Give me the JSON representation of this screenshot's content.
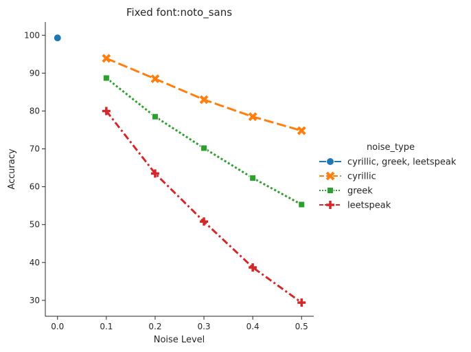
{
  "chart_data": {
    "type": "line",
    "title": "Fixed font:noto_sans",
    "xlabel": "Noise Level",
    "ylabel": "Accuracy",
    "xlim": [
      -0.025,
      0.525
    ],
    "ylim": [
      25.8,
      103.5
    ],
    "x_ticks": [
      "0.0",
      "0.1",
      "0.2",
      "0.3",
      "0.4",
      "0.5"
    ],
    "y_ticks": [
      "30",
      "40",
      "50",
      "60",
      "70",
      "80",
      "90",
      "100"
    ],
    "grid": false,
    "legend_title": "noise_type",
    "legend_position": "right",
    "series": [
      {
        "name": "cyrillic, greek, leetspeak",
        "color": "#1f77b4",
        "marker": "circle",
        "dash": "solid",
        "x": [
          0.0
        ],
        "y": [
          99.3
        ]
      },
      {
        "name": "cyrillic",
        "color": "#ff7f0e",
        "marker": "x",
        "dash": "dashed",
        "x": [
          0.1,
          0.2,
          0.3,
          0.4,
          0.5
        ],
        "y": [
          93.9,
          88.5,
          83.0,
          78.5,
          74.8
        ]
      },
      {
        "name": "greek",
        "color": "#2ca02c",
        "marker": "square",
        "dash": "dotted",
        "x": [
          0.1,
          0.2,
          0.3,
          0.4,
          0.5
        ],
        "y": [
          88.7,
          78.5,
          70.2,
          62.3,
          55.3
        ]
      },
      {
        "name": "leetspeak",
        "color": "#d62728",
        "marker": "plus",
        "dash": "dashdot",
        "x": [
          0.1,
          0.2,
          0.3,
          0.4,
          0.5
        ],
        "y": [
          80.0,
          63.5,
          50.8,
          38.7,
          29.4
        ]
      }
    ]
  }
}
